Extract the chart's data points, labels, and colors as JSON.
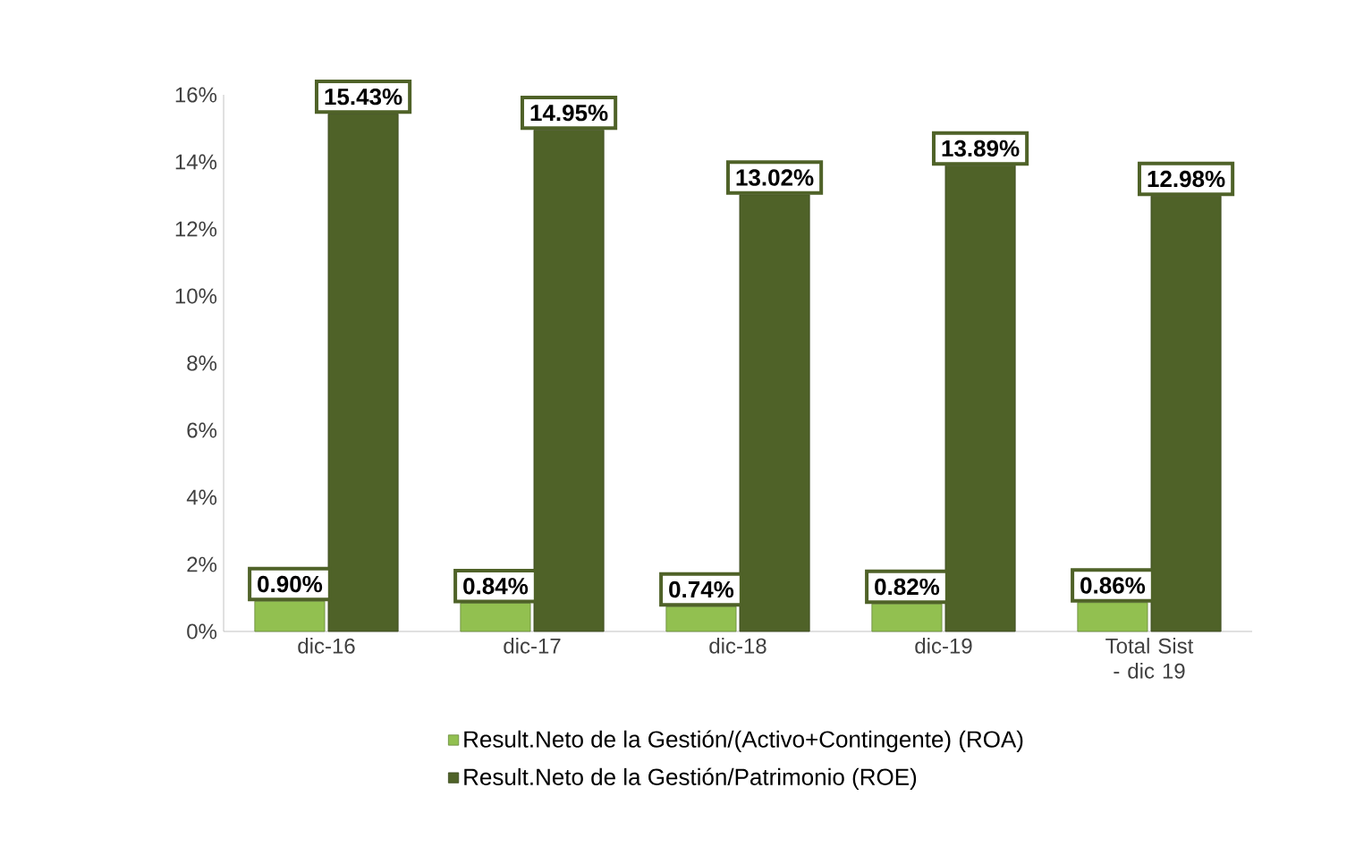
{
  "chart_data": {
    "type": "bar",
    "categories": [
      "dic-16",
      "dic-17",
      "dic-18",
      "dic-19",
      "Total Sist - dic 19"
    ],
    "series": [
      {
        "name": "Result.Neto de la Gestión/(Activo+Contingente) (ROA)",
        "color": "#92c050",
        "values": [
          0.9,
          0.84,
          0.74,
          0.82,
          0.86
        ],
        "value_labels": [
          "0.90%",
          "0.84%",
          "0.74%",
          "0.82%",
          "0.86%"
        ]
      },
      {
        "name": "Result.Neto de la Gestión/Patrimonio (ROE)",
        "color": "#4f6228",
        "values": [
          15.43,
          14.95,
          13.02,
          13.89,
          12.98
        ],
        "value_labels": [
          "15.43%",
          "14.95%",
          "13.02%",
          "13.89%",
          "12.98%"
        ]
      }
    ],
    "ylim": [
      0,
      16
    ],
    "yticks": [
      {
        "value": 0,
        "label": "0%"
      },
      {
        "value": 2,
        "label": "2%"
      },
      {
        "value": 4,
        "label": "4%"
      },
      {
        "value": 6,
        "label": "6%"
      },
      {
        "value": 8,
        "label": "8%"
      },
      {
        "value": 10,
        "label": "10%"
      },
      {
        "value": 12,
        "label": "12%"
      },
      {
        "value": 14,
        "label": "14%"
      },
      {
        "value": 16,
        "label": "16%"
      }
    ],
    "grid": false,
    "legend": "bottom"
  }
}
